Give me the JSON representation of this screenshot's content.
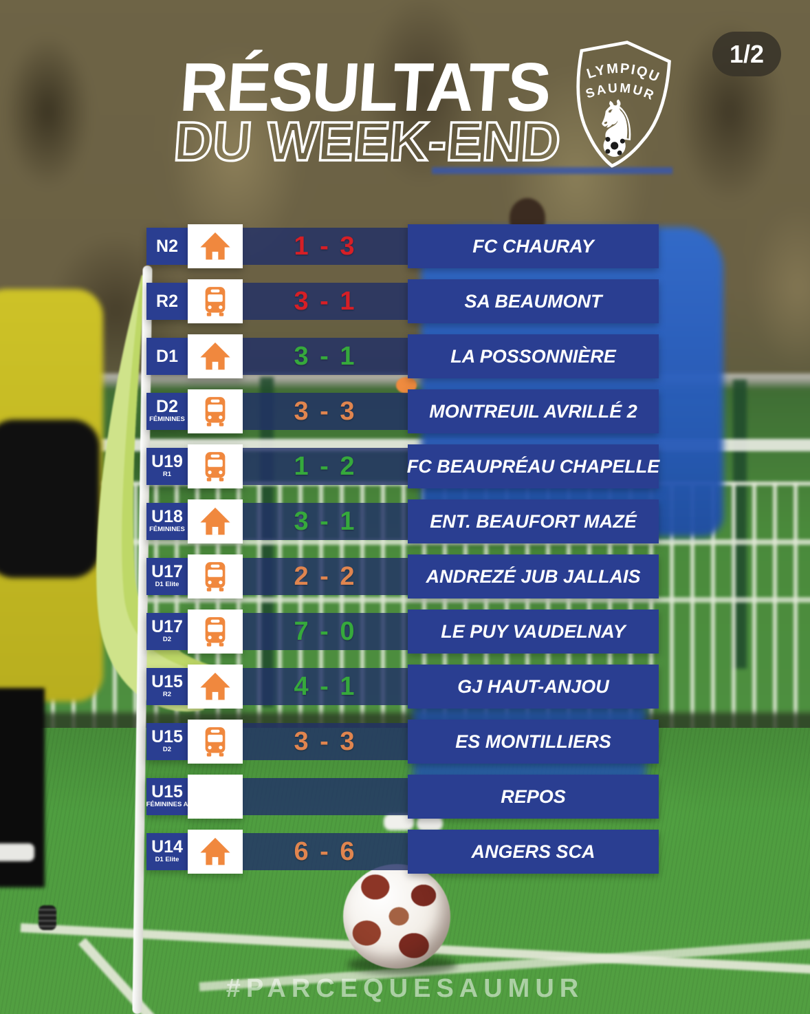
{
  "meta": {
    "page_indicator": "1/2",
    "hashtag": "#PARCEQUESAUMUR"
  },
  "header": {
    "title_line1": "RÉSULTATS",
    "title_line2": "DU WEEK-END",
    "badge": {
      "club_line1": "OLYMPIQUE",
      "club_line2": "SAUMUR"
    }
  },
  "legend_colors": {
    "win": "#36a93c",
    "loss": "#d61f26",
    "draw": "#e0854f",
    "panel_blue": "#2a3e91",
    "icon_orange": "#f0883e"
  },
  "results": [
    {
      "category": "N2",
      "subcategory": "",
      "venue": "home",
      "score": "1 - 3",
      "outcome": "loss",
      "opponent": "FC CHAURAY"
    },
    {
      "category": "R2",
      "subcategory": "",
      "venue": "away",
      "score": "3 - 1",
      "outcome": "loss",
      "opponent": "SA BEAUMONT"
    },
    {
      "category": "D1",
      "subcategory": "",
      "venue": "home",
      "score": "3 - 1",
      "outcome": "win",
      "opponent": "LA POSSONNIÈRE"
    },
    {
      "category": "D2",
      "subcategory": "FÉMININES",
      "venue": "away",
      "score": "3 - 3",
      "outcome": "draw",
      "opponent": "MONTREUIL AVRILLÉ 2"
    },
    {
      "category": "U19",
      "subcategory": "R1",
      "venue": "away",
      "score": "1 - 2",
      "outcome": "win",
      "opponent": "FC BEAUPRÉAU CHAPELLE"
    },
    {
      "category": "U18",
      "subcategory": "FÉMININES",
      "venue": "home",
      "score": "3 - 1",
      "outcome": "win",
      "opponent": "ENT. BEAUFORT MAZÉ"
    },
    {
      "category": "U17",
      "subcategory": "D1 Elite",
      "venue": "away",
      "score": "2 - 2",
      "outcome": "draw",
      "opponent": "ANDREZÉ JUB JALLAIS"
    },
    {
      "category": "U17",
      "subcategory": "D2",
      "venue": "away",
      "score": "7 - 0",
      "outcome": "win",
      "opponent": "LE PUY VAUDELNAY"
    },
    {
      "category": "U15",
      "subcategory": "R2",
      "venue": "home",
      "score": "4 - 1",
      "outcome": "win",
      "opponent": "GJ HAUT-ANJOU"
    },
    {
      "category": "U15",
      "subcategory": "D2",
      "venue": "away",
      "score": "3 - 3",
      "outcome": "draw",
      "opponent": "ES MONTILLIERS"
    },
    {
      "category": "U15",
      "subcategory": "FÉMININES A",
      "venue": "none",
      "score": "",
      "outcome": "none",
      "opponent": "REPOS"
    },
    {
      "category": "U14",
      "subcategory": "D1 Elite",
      "venue": "home",
      "score": "6 - 6",
      "outcome": "draw",
      "opponent": "ANGERS SCA"
    }
  ]
}
